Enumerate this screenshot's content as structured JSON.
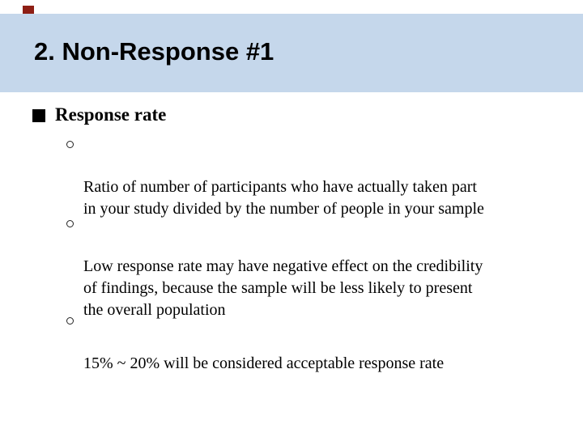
{
  "slide": {
    "title": "2. Non-Response #1",
    "colors": {
      "band_blue": "#c5d7eb",
      "accent_red": "#8e1f15",
      "text": "#000000"
    },
    "bullet_heading": {
      "label": "Response rate"
    },
    "sub_bullets": [
      {
        "text": "Ratio of number of participants who have actually taken part\nin your study divided by the number of people in your sample"
      },
      {
        "text": "Low response rate may have negative effect on the credibility\nof findings, because the sample will be less likely to present\nthe overall population"
      },
      {
        "text": "15% ~ 20% will be considered acceptable response rate"
      }
    ]
  }
}
